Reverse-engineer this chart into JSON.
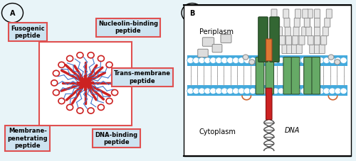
{
  "bg_color": "#e8f4f8",
  "panel_bg": "#ffffff",
  "box_bg": "#cde3f0",
  "box_edge": "#e05050",
  "red_color": "#cc2222",
  "blue_color": "#4477cc",
  "green_color": "#66aa66",
  "dark_green": "#336633",
  "orange_color": "#dd7733",
  "membrane_color": "#44aadd",
  "gray_color": "#aaaaaa",
  "circle_color": "#ee4444",
  "label_A": "A",
  "label_B": "B",
  "box_labels": [
    "Fusogenic\npeptide",
    "Nucleolin-binding\npeptide",
    "Trans-membrane\npeptide",
    "Membrane-\npenetrating\npeptide",
    "DNA-binding\npeptide"
  ],
  "periplasm": "Periplasm",
  "cytoplasm": "Cytoplasm",
  "dna_label": "DNA"
}
